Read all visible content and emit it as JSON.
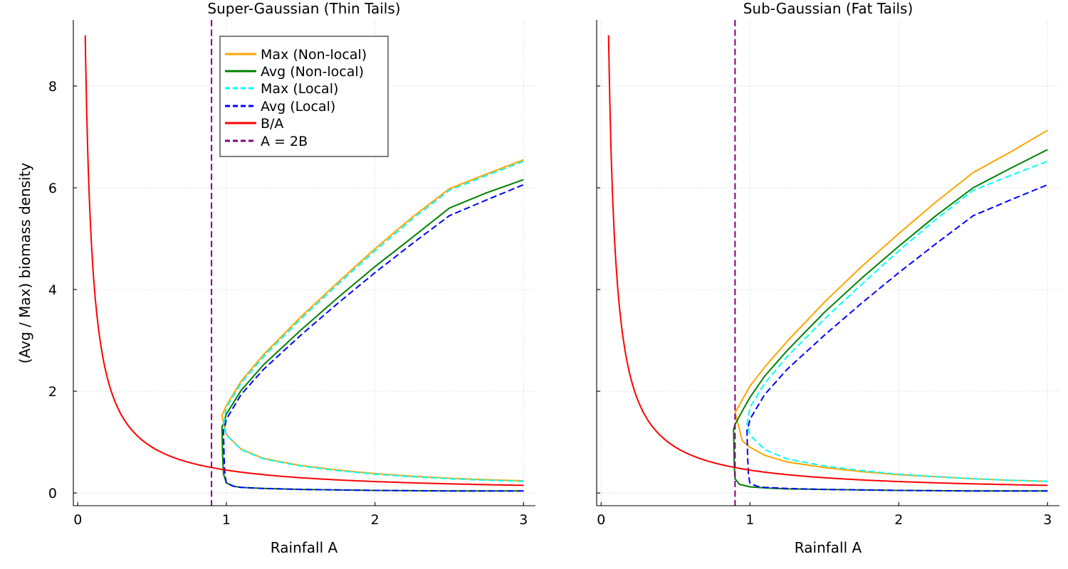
{
  "chart_data": {
    "type": "line",
    "shared": {
      "xlabel": "Rainfall A",
      "ylabel": "(Avg / Max) biomass density",
      "xlim": [
        -0.03,
        3.08
      ],
      "ylim": [
        -0.25,
        9.3
      ],
      "xticks": [
        0,
        1,
        2,
        3
      ],
      "yticks": [
        0,
        2,
        4,
        6,
        8
      ],
      "grid": true,
      "parameters": {
        "B": 0.45,
        "A_min": 0.05,
        "A_max": 3.0
      }
    },
    "legend": {
      "location": "top, in left panel",
      "items": [
        {
          "label": "Max (Non-local)",
          "color": "#ffa500",
          "style": "solid"
        },
        {
          "label": "Avg (Non-local)",
          "color": "#008000",
          "style": "solid"
        },
        {
          "label": "Max (Local)",
          "color": "#00ffff",
          "style": "dashed"
        },
        {
          "label": "Avg (Local)",
          "color": "#0000ff",
          "style": "dashed"
        },
        {
          "label": "B/A",
          "color": "#ff0000",
          "style": "solid"
        },
        {
          "label": "A = 2B",
          "color": "#800080",
          "style": "dashed"
        }
      ]
    },
    "panels": [
      {
        "title": "Super-Gaussian (Thin Tails)",
        "threshold_A": 0.9,
        "series": [
          {
            "name": "Max (Non-local)",
            "color": "#ffa500",
            "dash": "solid",
            "upper": {
              "x": [
                0.97,
                1.0,
                1.1,
                1.25,
                1.5,
                1.75,
                2.0,
                2.25,
                2.5,
                2.75,
                3.0
              ],
              "y": [
                1.52,
                1.72,
                2.2,
                2.72,
                3.46,
                4.14,
                4.8,
                5.42,
                5.98,
                6.27,
                6.55
              ]
            },
            "lower": {
              "x": [
                0.97,
                1.0,
                1.1,
                1.25,
                1.5,
                1.75,
                2.0,
                2.25,
                2.5,
                2.75,
                3.0
              ],
              "y": [
                1.52,
                1.15,
                0.86,
                0.68,
                0.54,
                0.45,
                0.38,
                0.33,
                0.29,
                0.26,
                0.24
              ]
            }
          },
          {
            "name": "Avg (Non-local)",
            "color": "#008000",
            "dash": "solid",
            "upper": {
              "x": [
                0.97,
                0.98,
                1.0,
                1.1,
                1.25,
                1.5,
                1.75,
                2.0,
                2.25,
                2.5,
                2.75,
                3.0
              ],
              "y": [
                1.3,
                1.36,
                1.55,
                2.02,
                2.52,
                3.2,
                3.84,
                4.45,
                5.02,
                5.6,
                5.9,
                6.16
              ]
            },
            "lower": {
              "x": [
                0.97,
                0.975,
                0.98,
                1.0,
                1.05,
                1.1,
                1.25,
                1.5,
                2.0,
                2.5,
                3.0
              ],
              "y": [
                1.3,
                0.72,
                0.38,
                0.2,
                0.13,
                0.11,
                0.09,
                0.07,
                0.05,
                0.04,
                0.04
              ]
            }
          },
          {
            "name": "Max (Local)",
            "color": "#00ffff",
            "dash": "dashed",
            "upper": {
              "x": [
                0.98,
                1.0,
                1.1,
                1.25,
                1.5,
                1.75,
                2.0,
                2.25,
                2.5,
                2.75,
                3.0
              ],
              "y": [
                1.35,
                1.68,
                2.16,
                2.68,
                3.42,
                4.1,
                4.76,
                5.38,
                5.95,
                6.24,
                6.52
              ]
            },
            "lower": {
              "x": [
                0.98,
                1.0,
                1.1,
                1.25,
                1.5,
                1.75,
                2.0,
                2.25,
                2.5,
                2.75,
                3.0
              ],
              "y": [
                1.35,
                1.14,
                0.85,
                0.67,
                0.53,
                0.44,
                0.37,
                0.32,
                0.28,
                0.25,
                0.23
              ]
            }
          },
          {
            "name": "Avg (Local)",
            "color": "#0000ff",
            "dash": "dashed",
            "upper": {
              "x": [
                0.98,
                0.99,
                1.0,
                1.1,
                1.25,
                1.5,
                1.75,
                2.0,
                2.25,
                2.5,
                2.75,
                3.0
              ],
              "y": [
                1.25,
                1.32,
                1.45,
                1.94,
                2.43,
                3.1,
                3.73,
                4.33,
                4.9,
                5.45,
                5.76,
                6.06
              ]
            },
            "lower": {
              "x": [
                0.98,
                0.985,
                0.99,
                1.0,
                1.05,
                1.1,
                1.25,
                1.5,
                2.0,
                2.5,
                3.0
              ],
              "y": [
                1.25,
                0.68,
                0.36,
                0.19,
                0.13,
                0.11,
                0.09,
                0.07,
                0.05,
                0.04,
                0.04
              ]
            }
          },
          {
            "name": "B/A",
            "color": "#ff0000",
            "dash": "solid",
            "function": "B/A"
          },
          {
            "name": "A = 2B",
            "color": "#800080",
            "dash": "dashed",
            "vertical_at": 0.9
          }
        ]
      },
      {
        "title": "Sub-Gaussian (Fat Tails)",
        "threshold_A": 0.9,
        "series": [
          {
            "name": "Max (Non-local)",
            "color": "#ffa500",
            "dash": "solid",
            "upper": {
              "x": [
                0.9,
                0.95,
                1.0,
                1.1,
                1.25,
                1.5,
                1.75,
                2.0,
                2.25,
                2.5,
                2.75,
                3.0
              ],
              "y": [
                1.58,
                1.84,
                2.1,
                2.48,
                2.98,
                3.75,
                4.45,
                5.1,
                5.72,
                6.3,
                6.7,
                7.13
              ]
            },
            "lower": {
              "x": [
                0.9,
                0.95,
                1.0,
                1.1,
                1.25,
                1.5,
                1.75,
                2.0,
                2.25,
                2.5,
                2.75,
                3.0
              ],
              "y": [
                1.58,
                1.02,
                0.9,
                0.74,
                0.61,
                0.5,
                0.42,
                0.36,
                0.32,
                0.28,
                0.25,
                0.23
              ]
            }
          },
          {
            "name": "Avg (Non-local)",
            "color": "#008000",
            "dash": "solid",
            "upper": {
              "x": [
                0.89,
                0.9,
                0.95,
                1.0,
                1.1,
                1.25,
                1.5,
                1.75,
                2.0,
                2.25,
                2.5,
                2.75,
                3.0
              ],
              "y": [
                1.25,
                1.35,
                1.62,
                1.88,
                2.3,
                2.8,
                3.55,
                4.22,
                4.85,
                5.45,
                6.0,
                6.38,
                6.75
              ]
            },
            "lower": {
              "x": [
                0.89,
                0.895,
                0.9,
                0.93,
                1.0,
                1.1,
                1.25,
                1.5,
                2.0,
                2.5,
                3.0
              ],
              "y": [
                1.25,
                0.52,
                0.28,
                0.17,
                0.12,
                0.1,
                0.08,
                0.07,
                0.05,
                0.04,
                0.04
              ]
            }
          },
          {
            "name": "Max (Local)",
            "color": "#00ffff",
            "dash": "dashed",
            "upper": {
              "x": [
                0.98,
                1.0,
                1.1,
                1.25,
                1.5,
                1.75,
                2.0,
                2.25,
                2.5,
                2.75,
                3.0
              ],
              "y": [
                1.35,
                1.68,
                2.16,
                2.68,
                3.42,
                4.1,
                4.76,
                5.38,
                5.95,
                6.24,
                6.52
              ]
            },
            "lower": {
              "x": [
                0.98,
                1.0,
                1.1,
                1.25,
                1.5,
                1.75,
                2.0,
                2.25,
                2.5,
                2.75,
                3.0
              ],
              "y": [
                1.35,
                1.14,
                0.85,
                0.67,
                0.53,
                0.44,
                0.37,
                0.32,
                0.28,
                0.25,
                0.23
              ]
            }
          },
          {
            "name": "Avg (Local)",
            "color": "#0000ff",
            "dash": "dashed",
            "upper": {
              "x": [
                0.98,
                0.99,
                1.0,
                1.1,
                1.25,
                1.5,
                1.75,
                2.0,
                2.25,
                2.5,
                2.75,
                3.0
              ],
              "y": [
                1.25,
                1.32,
                1.45,
                1.94,
                2.43,
                3.1,
                3.73,
                4.33,
                4.9,
                5.45,
                5.76,
                6.06
              ]
            },
            "lower": {
              "x": [
                0.98,
                0.985,
                0.99,
                1.0,
                1.05,
                1.1,
                1.25,
                1.5,
                2.0,
                2.5,
                3.0
              ],
              "y": [
                1.25,
                0.68,
                0.36,
                0.19,
                0.13,
                0.11,
                0.09,
                0.07,
                0.05,
                0.04,
                0.04
              ]
            }
          },
          {
            "name": "B/A",
            "color": "#ff0000",
            "dash": "solid",
            "function": "B/A"
          },
          {
            "name": "A = 2B",
            "color": "#800080",
            "dash": "dashed",
            "vertical_at": 0.9
          }
        ]
      }
    ]
  }
}
